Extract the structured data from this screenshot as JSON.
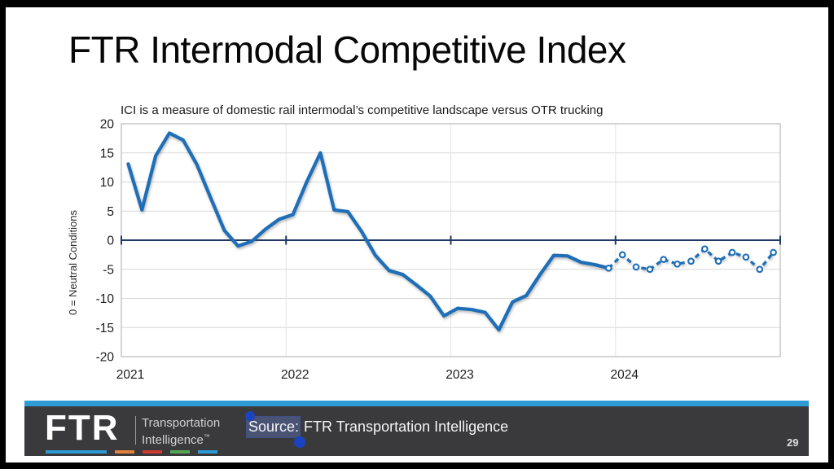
{
  "slide": {
    "title": "FTR Intermodal Competitive Index"
  },
  "chart": {
    "subtitle": "ICI is a measure of domestic rail intermodal’s competitive landscape versus OTR trucking",
    "y_axis_title": "0 = Neutral Conditions"
  },
  "chart_data": {
    "type": "line",
    "title": "FTR Intermodal Competitive Index",
    "subtitle": "ICI is a measure of domestic rail intermodal’s competitive landscape versus OTR trucking",
    "ylabel": "0 = Neutral Conditions",
    "ylim": [
      -20,
      20
    ],
    "y_ticks": [
      20,
      15,
      10,
      5,
      0,
      -5,
      -10,
      -15,
      -20
    ],
    "x_years": [
      "2021",
      "2022",
      "2023",
      "2024"
    ],
    "grid": "horizontal-major, faint vertical at year starts, navy axis line at zero with year tick marks",
    "series": [
      {
        "name": "ICI history (monthly)",
        "style": "solid",
        "start": "2021-01",
        "start_index": 0,
        "values": [
          13.1,
          5.2,
          14.5,
          18.4,
          17.2,
          13.0,
          7.3,
          1.7,
          -1.0,
          -0.2,
          1.9,
          3.6,
          4.4,
          10.0,
          15.0,
          5.2,
          4.9,
          1.5,
          -2.6,
          -5.2,
          -5.9,
          -7.7,
          -9.6,
          -13.0,
          -11.7,
          -11.9,
          -12.4,
          -15.4,
          -10.6,
          -9.5,
          -5.9,
          -2.6,
          -2.7,
          -3.8,
          -4.2,
          -4.8
        ]
      },
      {
        "name": "ICI forecast (monthly, dashed with markers)",
        "style": "dashed-markers",
        "start": "2023-12",
        "start_index": 35,
        "values": [
          -4.8,
          -2.5,
          -4.6,
          -5.0,
          -3.3,
          -4.1,
          -3.6,
          -1.5,
          -3.6,
          -2.1,
          -2.9,
          -5.0,
          -2.1
        ]
      }
    ],
    "colors": {
      "line": "#1e6fb8",
      "zero_axis": "#1f3864",
      "grid": "#d8d8d8",
      "year_grid": "#e4e4e4",
      "plot_border": "#bebebe",
      "marker_fill": "#ffffff"
    }
  },
  "footer": {
    "logo_text": "FTR",
    "logo_sub1": "Transportation",
    "logo_sub2": "Intelligence",
    "logo_trademark": "™",
    "source_label": "Source:",
    "source_rest": " FTR Transportation Intelligence",
    "page_number": "29",
    "accent_bar_color": "#2e9bd6",
    "bar_color": "#3a3a3c",
    "selection_handle_color": "#1b43c0",
    "logo_dash_colors": [
      "#2e9bd6",
      "#e0813c",
      "#cf3a32",
      "#56a456",
      "#2e9bd6"
    ]
  }
}
